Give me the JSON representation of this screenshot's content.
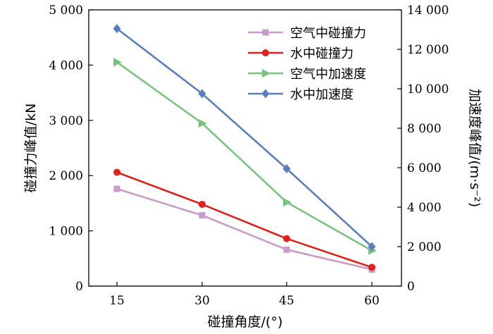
{
  "chart_data": {
    "type": "line",
    "categories": [
      15,
      30,
      45,
      60
    ],
    "xlabel": "碰撞角度/(°)",
    "ylabel_left": "碰撞力峰值/kN",
    "ylabel_right": "加速度峰值/(m·s⁻²)",
    "ylim_left": [
      0,
      5000
    ],
    "ylim_right": [
      0,
      14000
    ],
    "xticks": [
      "15",
      "30",
      "45",
      "60"
    ],
    "yticks_left": [
      "0",
      "1 000",
      "2 000",
      "3 000",
      "4 000",
      "5 000"
    ],
    "yticks_right": [
      "0",
      "2 000",
      "4 000",
      "6 000",
      "8 000",
      "10 000",
      "12 000",
      "14 000"
    ],
    "legend_position": "top-right",
    "series": [
      {
        "name": "空气中碰撞力",
        "axis": "left",
        "color": "#c89bc8",
        "marker": "square",
        "values": [
          1760,
          1280,
          660,
          300
        ]
      },
      {
        "name": "水中碰撞力",
        "axis": "left",
        "color": "#e0201b",
        "marker": "circle",
        "values": [
          2060,
          1480,
          860,
          340
        ]
      },
      {
        "name": "空气中加速度",
        "axis": "right",
        "color": "#77c47f",
        "marker": "triangle-right",
        "values": [
          11350,
          8250,
          4250,
          1800
        ]
      },
      {
        "name": "水中加速度",
        "axis": "right",
        "color": "#5b7fba",
        "marker": "diamond",
        "values": [
          13050,
          9750,
          5950,
          2000
        ]
      }
    ]
  }
}
